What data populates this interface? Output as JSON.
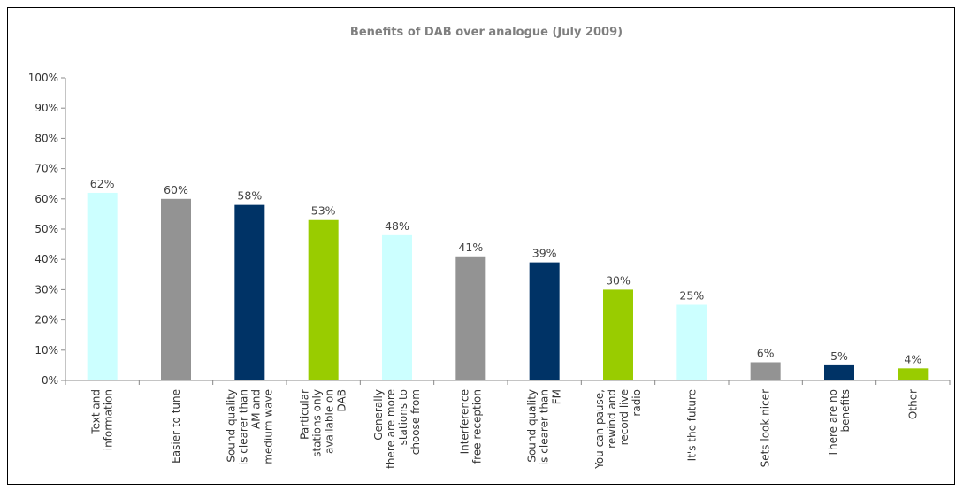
{
  "chart_data": {
    "type": "bar",
    "title": "Benefits of DAB over analogue (July 2009)",
    "xlabel": "",
    "ylabel": "",
    "ylim": [
      0,
      100
    ],
    "y_ticks": [
      "0%",
      "10%",
      "20%",
      "30%",
      "40%",
      "50%",
      "60%",
      "70%",
      "80%",
      "90%",
      "100%"
    ],
    "grid": false,
    "legend": "none",
    "categories": [
      [
        "Text and",
        "information"
      ],
      [
        "Easier to tune"
      ],
      [
        "Sound quality",
        "is clearer than",
        "AM and",
        "medium wave"
      ],
      [
        "Particular",
        "stations only",
        "available on",
        "DAB"
      ],
      [
        "Generally",
        "there are more",
        "stations to",
        "choose from"
      ],
      [
        "Interference",
        "free reception"
      ],
      [
        "Sound quality",
        "is clearer than",
        "FM"
      ],
      [
        "You can pause,",
        "rewind and",
        "record live",
        "radio"
      ],
      [
        "It's the future"
      ],
      [
        "Sets look nicer"
      ],
      [
        "There are no",
        "benefits"
      ],
      [
        "Other"
      ]
    ],
    "values": [
      62,
      60,
      58,
      53,
      48,
      41,
      39,
      30,
      25,
      6,
      5,
      4
    ],
    "value_labels": [
      "62%",
      "60%",
      "58%",
      "53%",
      "48%",
      "41%",
      "39%",
      "30%",
      "25%",
      "6%",
      "5%",
      "4%"
    ],
    "colors": [
      "#ccffff",
      "#939393",
      "#003366",
      "#99cc00",
      "#ccffff",
      "#939393",
      "#003366",
      "#99cc00",
      "#ccffff",
      "#939393",
      "#003366",
      "#99cc00"
    ]
  }
}
